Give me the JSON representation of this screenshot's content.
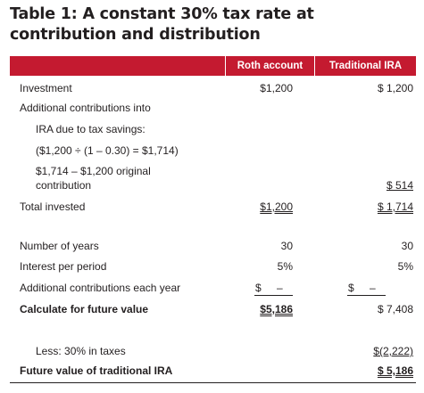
{
  "title": "Table 1: A constant 30% tax rate at contribution and distribution",
  "columns": {
    "roth": "Roth account",
    "traditional": "Traditional IRA"
  },
  "rows": {
    "investment": {
      "label": "Investment",
      "roth": "$1,200",
      "traditional": "$ 1,200"
    },
    "additional_contrib": {
      "label": "Additional contributions into"
    },
    "ira_due": {
      "label": "IRA due to tax savings:"
    },
    "formula": {
      "label": "($1,200 ÷ (1 – 0.30) = $1,714)"
    },
    "original_line1": {
      "label": "$1,714 – $1,200 original"
    },
    "original_line2": {
      "label": "contribution",
      "traditional": "$  514"
    },
    "total_invested": {
      "label": "Total invested",
      "roth": "$1,200",
      "traditional": "$ 1,714"
    },
    "num_years": {
      "label": "Number of years",
      "roth": "30",
      "traditional": "30"
    },
    "interest": {
      "label": "Interest per period",
      "roth": "5%",
      "traditional": "5%"
    },
    "add_each_year": {
      "label": "Additional contributions each year",
      "roth_sym": "$",
      "roth_dash": "–",
      "trad_sym": "$",
      "trad_dash": "–"
    },
    "future_value": {
      "label": "Calculate for future value",
      "roth": "$5,186",
      "traditional": "$ 7,408"
    },
    "less_taxes": {
      "label": "Less: 30% in taxes",
      "traditional": "$(2,222)"
    },
    "fv_traditional": {
      "label": "Future value of traditional IRA",
      "traditional": "$ 5,186"
    }
  }
}
